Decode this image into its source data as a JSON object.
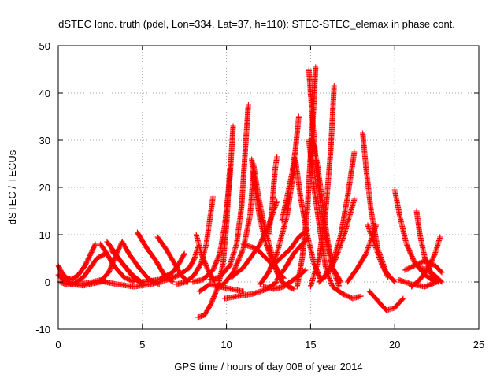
{
  "chart_data": {
    "type": "scatter",
    "title": "dSTEC Iono. truth (pdel, Lon=334, Lat=37, h=110): STEC-STEC_elemax in phase cont.",
    "xlabel": "GPS time / hours of day 008 of year 2014",
    "ylabel": "dSTEC  / TECUs",
    "xlim": [
      0,
      25
    ],
    "ylim": [
      -10,
      50
    ],
    "xticks": [
      0,
      5,
      10,
      15,
      20,
      25
    ],
    "yticks": [
      -10,
      0,
      10,
      20,
      30,
      40,
      50
    ],
    "grid": true,
    "marker": "+",
    "color": "#ff0000",
    "arcs": [
      {
        "x": [
          0.0,
          0.2,
          0.5,
          0.8,
          1.2,
          1.6,
          2.0,
          2.2
        ],
        "y": [
          3.5,
          2.0,
          0.8,
          0.5,
          1.5,
          3.5,
          6.5,
          8.0
        ]
      },
      {
        "x": [
          0.0,
          0.3,
          0.8,
          1.5,
          2.2,
          2.8
        ],
        "y": [
          1.5,
          0.5,
          -0.5,
          -0.8,
          -0.2,
          0.2
        ]
      },
      {
        "x": [
          0.1,
          0.5,
          1.0,
          1.5,
          1.9,
          2.3,
          2.8
        ],
        "y": [
          0.0,
          -0.6,
          -0.2,
          1.0,
          3.0,
          5.0,
          6.0
        ]
      },
      {
        "x": [
          1.0,
          1.8,
          2.6,
          3.0,
          3.4,
          3.8
        ],
        "y": [
          -0.5,
          -0.2,
          0.5,
          2.0,
          5.5,
          8.5
        ]
      },
      {
        "x": [
          2.5,
          2.8,
          3.3,
          3.9,
          4.5
        ],
        "y": [
          8.0,
          6.5,
          3.5,
          1.0,
          0.0
        ]
      },
      {
        "x": [
          2.9,
          3.3,
          3.9,
          4.5,
          5.0
        ],
        "y": [
          8.5,
          6.5,
          3.5,
          0.8,
          -0.5
        ]
      },
      {
        "x": [
          3.2,
          3.8,
          4.4,
          5.0
        ],
        "y": [
          6.5,
          4.0,
          1.5,
          -0.2
        ]
      },
      {
        "x": [
          3.8,
          4.2,
          4.8,
          5.4,
          6.0
        ],
        "y": [
          8.5,
          6.0,
          3.0,
          0.5,
          -0.5
        ]
      },
      {
        "x": [
          4.7,
          5.2,
          5.8,
          6.3,
          6.8
        ],
        "y": [
          10.5,
          7.5,
          4.5,
          1.5,
          0.0
        ]
      },
      {
        "x": [
          2.5,
          3.5,
          4.5,
          5.5,
          6.5
        ],
        "y": [
          0.2,
          -0.5,
          -1.0,
          -0.5,
          0.5
        ]
      },
      {
        "x": [
          5.0,
          6.0,
          6.8,
          7.2,
          7.5
        ],
        "y": [
          0.0,
          0.5,
          2.0,
          4.0,
          6.0
        ]
      },
      {
        "x": [
          5.9,
          6.4,
          6.9,
          7.3,
          7.7
        ],
        "y": [
          9.5,
          7.0,
          4.0,
          1.5,
          0.0
        ]
      },
      {
        "x": [
          6.5,
          7.2,
          7.8,
          8.1,
          8.3
        ],
        "y": [
          0.5,
          1.5,
          3.0,
          5.0,
          7.5
        ]
      },
      {
        "x": [
          7.0,
          7.6,
          8.1,
          8.5,
          8.8,
          9.0,
          9.2
        ],
        "y": [
          -0.5,
          0.0,
          1.5,
          4.0,
          8.0,
          13.0,
          18.0
        ]
      },
      {
        "x": [
          8.2,
          8.5,
          8.9,
          9.3
        ],
        "y": [
          10.0,
          6.0,
          2.5,
          0.0
        ]
      },
      {
        "x": [
          8.3,
          8.7,
          9.1,
          9.5,
          9.8,
          10.0,
          10.2
        ],
        "y": [
          -7.5,
          -7.0,
          -4.5,
          -1.0,
          4.0,
          12.0,
          24.0
        ]
      },
      {
        "x": [
          8.0,
          8.6,
          9.2,
          9.6,
          9.9,
          10.2,
          10.4
        ],
        "y": [
          0.0,
          0.5,
          2.5,
          6.0,
          12.0,
          22.0,
          33.0
        ]
      },
      {
        "x": [
          8.4,
          9.0,
          9.6,
          10.3,
          11.0
        ],
        "y": [
          -2.0,
          -0.5,
          -1.0,
          -1.5,
          -2.0
        ]
      },
      {
        "x": [
          9.0,
          9.6,
          10.2,
          10.6,
          10.9,
          11.1,
          11.3
        ],
        "y": [
          0.5,
          1.0,
          3.5,
          8.0,
          16.0,
          27.0,
          37.5
        ]
      },
      {
        "x": [
          9.7,
          10.4,
          11.0,
          11.4,
          11.6
        ],
        "y": [
          -1.0,
          2.0,
          7.0,
          14.0,
          23.0
        ]
      },
      {
        "x": [
          9.9,
          10.7,
          11.6,
          12.4,
          13.0
        ],
        "y": [
          -3.5,
          -3.0,
          -2.5,
          -1.5,
          0.0
        ]
      },
      {
        "x": [
          10.3,
          11.0,
          11.5,
          12.0,
          12.5,
          13.0
        ],
        "y": [
          1.0,
          3.0,
          5.5,
          8.0,
          12.0,
          17.0
        ]
      },
      {
        "x": [
          11.5,
          11.7,
          12.0,
          12.4,
          12.8,
          13.2
        ],
        "y": [
          26.0,
          20.0,
          13.0,
          7.5,
          4.0,
          1.5
        ]
      },
      {
        "x": [
          11.6,
          11.9,
          12.3,
          12.7,
          13.0,
          13.3,
          13.7,
          14.0
        ],
        "y": [
          25.0,
          18.0,
          11.0,
          6.0,
          2.0,
          0.0,
          -1.0,
          -1.5
        ]
      },
      {
        "x": [
          11.0,
          11.8,
          12.5,
          13.0,
          13.4
        ],
        "y": [
          8.0,
          7.0,
          4.5,
          2.5,
          0.8
        ]
      },
      {
        "x": [
          12.0,
          12.5,
          13.0,
          13.6,
          14.1
        ],
        "y": [
          -0.5,
          2.0,
          6.0,
          14.0,
          26.0
        ]
      },
      {
        "x": [
          12.5,
          12.7,
          12.8,
          12.9,
          13.0
        ],
        "y": [
          10.0,
          15.0,
          20.0,
          24.0,
          26.5
        ]
      },
      {
        "x": [
          12.2,
          12.8,
          13.4,
          14.0,
          14.7
        ],
        "y": [
          -1.0,
          -1.5,
          -1.0,
          0.5,
          2.5
        ]
      },
      {
        "x": [
          12.6,
          13.2,
          13.8,
          14.3,
          14.8
        ],
        "y": [
          3.0,
          5.0,
          7.0,
          9.5,
          11.0
        ]
      },
      {
        "x": [
          13.0,
          13.5,
          14.0,
          14.5,
          14.8
        ],
        "y": [
          0.5,
          3.0,
          6.0,
          8.0,
          9.0
        ]
      },
      {
        "x": [
          13.3,
          13.6,
          13.9,
          14.1,
          14.3
        ],
        "y": [
          13.0,
          18.0,
          23.0,
          28.0,
          35.0
        ]
      },
      {
        "x": [
          14.1,
          14.4,
          14.8,
          15.2,
          15.6
        ],
        "y": [
          26.0,
          18.0,
          10.0,
          4.0,
          0.5
        ]
      },
      {
        "x": [
          14.2,
          14.5,
          14.8,
          15.0,
          15.2,
          15.3
        ],
        "y": [
          -1.0,
          5.0,
          15.0,
          27.0,
          38.0,
          45.5
        ]
      },
      {
        "x": [
          14.9,
          15.1,
          15.4,
          15.8,
          16.3,
          16.8
        ],
        "y": [
          45.0,
          35.0,
          22.0,
          11.0,
          3.0,
          0.0
        ]
      },
      {
        "x": [
          14.9,
          15.2,
          15.6,
          15.9,
          16.3
        ],
        "y": [
          30.0,
          20.0,
          10.0,
          3.0,
          -1.0
        ]
      },
      {
        "x": [
          15.1,
          15.4,
          15.7,
          16.0,
          16.3,
          16.7
        ],
        "y": [
          30.0,
          25.0,
          17.0,
          9.0,
          3.0,
          -1.0
        ]
      },
      {
        "x": [
          15.0,
          15.5,
          15.9,
          16.2,
          16.4
        ],
        "y": [
          -1.0,
          5.0,
          15.0,
          28.0,
          41.5
        ]
      },
      {
        "x": [
          15.5,
          16.0,
          16.5,
          17.0,
          17.6
        ],
        "y": [
          0.0,
          1.5,
          5.0,
          10.0,
          17.5
        ]
      },
      {
        "x": [
          15.8,
          16.3,
          16.8,
          17.2,
          17.6
        ],
        "y": [
          1.0,
          4.0,
          10.0,
          18.0,
          27.5
        ]
      },
      {
        "x": [
          16.3,
          16.9,
          17.5,
          18.0
        ],
        "y": [
          -1.0,
          -2.5,
          -3.5,
          -3.0
        ]
      },
      {
        "x": [
          18.1,
          18.3,
          18.6,
          19.0,
          19.5,
          20.0
        ],
        "y": [
          31.5,
          24.0,
          15.0,
          7.0,
          2.0,
          0.0
        ]
      },
      {
        "x": [
          17.2,
          17.8,
          18.3,
          18.6,
          18.9
        ],
        "y": [
          0.0,
          3.0,
          6.0,
          9.0,
          12.0
        ]
      },
      {
        "x": [
          18.4,
          18.8,
          19.2,
          19.6
        ],
        "y": [
          12.0,
          8.0,
          4.0,
          1.0
        ]
      },
      {
        "x": [
          18.5,
          19.0,
          19.5,
          20.0,
          20.5
        ],
        "y": [
          -2.0,
          -4.0,
          -6.0,
          -5.5,
          -3.5
        ]
      },
      {
        "x": [
          20.0,
          20.3,
          20.7,
          21.2,
          21.8,
          22.4
        ],
        "y": [
          19.5,
          14.0,
          8.0,
          4.0,
          1.5,
          0.0
        ]
      },
      {
        "x": [
          20.2,
          21.0,
          21.8,
          22.5
        ],
        "y": [
          0.5,
          -0.5,
          -1.0,
          0.0
        ]
      },
      {
        "x": [
          21.3,
          21.5,
          21.8,
          22.2,
          22.6
        ],
        "y": [
          15.0,
          10.0,
          5.0,
          1.5,
          0.0
        ]
      },
      {
        "x": [
          21.0,
          21.5,
          22.0,
          22.4,
          22.7
        ],
        "y": [
          -1.0,
          0.5,
          3.0,
          6.0,
          9.5
        ]
      },
      {
        "x": [
          20.6,
          21.2,
          21.8,
          22.4,
          22.8
        ],
        "y": [
          2.5,
          3.5,
          4.5,
          3.5,
          2.0
        ]
      },
      {
        "x": [
          21.5,
          22.0,
          22.5,
          22.8
        ],
        "y": [
          3.0,
          2.5,
          1.0,
          0.0
        ]
      }
    ]
  }
}
